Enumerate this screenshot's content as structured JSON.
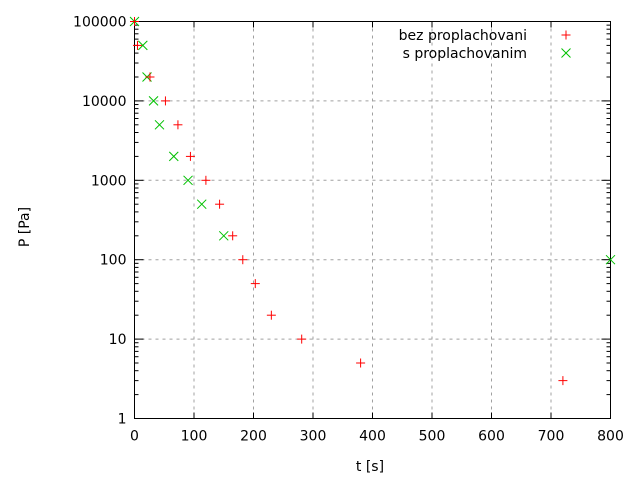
{
  "chart_data": {
    "type": "scatter",
    "title": "",
    "xlabel": "t [s]",
    "ylabel": "P [Pa]",
    "xlim": [
      0,
      800
    ],
    "ylim": [
      1,
      100000
    ],
    "yscale": "log",
    "grid": true,
    "legend_placement": "top-right",
    "x_ticks": [
      "0",
      "100",
      "200",
      "300",
      "400",
      "500",
      "600",
      "700",
      "800"
    ],
    "y_ticks": [
      "1",
      "10",
      "100",
      "1000",
      "10000",
      "100000"
    ],
    "series": [
      {
        "name": "bez proplachovani",
        "marker": "plus",
        "color": "#ff0000",
        "points": [
          [
            0,
            100000
          ],
          [
            5,
            50000
          ],
          [
            26,
            20000
          ],
          [
            52,
            10000
          ],
          [
            73,
            5000
          ],
          [
            94,
            2000
          ],
          [
            120,
            1000
          ],
          [
            143,
            500
          ],
          [
            165,
            200
          ],
          [
            182,
            100
          ],
          [
            203,
            50
          ],
          [
            230,
            20
          ],
          [
            281,
            10
          ],
          [
            380,
            5
          ],
          [
            720,
            3
          ]
        ]
      },
      {
        "name": "s proplachovanim",
        "marker": "cross",
        "color": "#00c000",
        "points": [
          [
            0,
            100000
          ],
          [
            14,
            50000
          ],
          [
            21,
            20000
          ],
          [
            32,
            10000
          ],
          [
            42,
            5000
          ],
          [
            66,
            2000
          ],
          [
            90,
            1000
          ],
          [
            113,
            500
          ],
          [
            150,
            200
          ],
          [
            800,
            100
          ]
        ]
      }
    ]
  }
}
